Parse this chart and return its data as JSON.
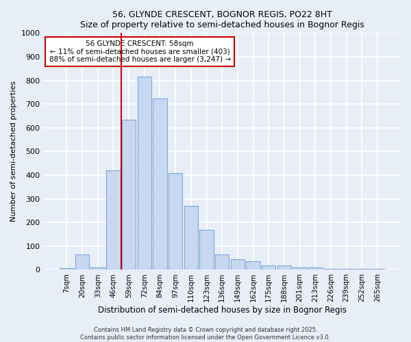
{
  "title1": "56, GLYNDE CRESCENT, BOGNOR REGIS, PO22 8HT",
  "title2": "Size of property relative to semi-detached houses in Bognor Regis",
  "xlabel": "Distribution of semi-detached houses by size in Bognor Regis",
  "ylabel": "Number of semi-detached properties",
  "categories": [
    "7sqm",
    "20sqm",
    "33sqm",
    "46sqm",
    "59sqm",
    "72sqm",
    "84sqm",
    "97sqm",
    "110sqm",
    "123sqm",
    "136sqm",
    "149sqm",
    "162sqm",
    "175sqm",
    "188sqm",
    "201sqm",
    "213sqm",
    "226sqm",
    "239sqm",
    "252sqm",
    "265sqm"
  ],
  "values": [
    8,
    65,
    10,
    420,
    635,
    815,
    725,
    410,
    270,
    170,
    65,
    45,
    35,
    18,
    18,
    10,
    10,
    5,
    5,
    5,
    5
  ],
  "bar_color": "#c8d8f0",
  "bar_edge_color": "#7aa8d8",
  "vline_color": "#cc0000",
  "annotation_title": "56 GLYNDE CRESCENT: 58sqm",
  "annotation_line1": "← 11% of semi-detached houses are smaller (403)",
  "annotation_line2": "88% of semi-detached houses are larger (3,247) →",
  "annotation_box_color": "#cc0000",
  "ylim": [
    0,
    1000
  ],
  "yticks": [
    0,
    100,
    200,
    300,
    400,
    500,
    600,
    700,
    800,
    900,
    1000
  ],
  "footer1": "Contains HM Land Registry data © Crown copyright and database right 2025.",
  "footer2": "Contains public sector information licensed under the Open Government Licence v3.0.",
  "bg_color": "#e8eef8",
  "plot_bg_color": "#e8eef8",
  "grid_color": "#ffffff"
}
